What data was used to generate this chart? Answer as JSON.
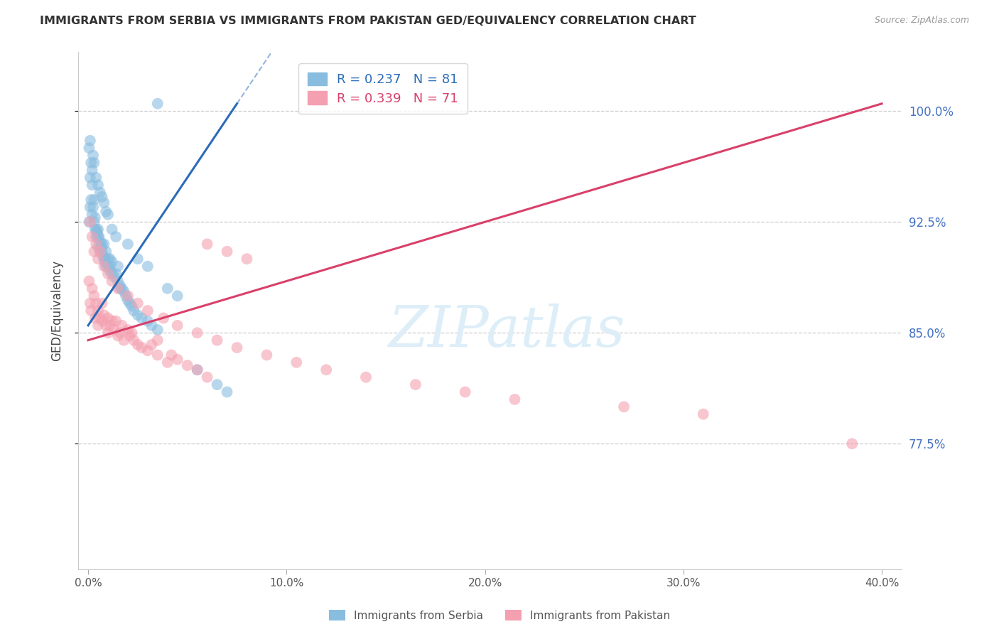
{
  "title": "IMMIGRANTS FROM SERBIA VS IMMIGRANTS FROM PAKISTAN GED/EQUIVALENCY CORRELATION CHART",
  "source": "Source: ZipAtlas.com",
  "ylabel": "GED/Equivalency",
  "xlim": [
    -0.5,
    41.0
  ],
  "ylim": [
    69.0,
    104.0
  ],
  "x_tick_vals": [
    0,
    10,
    20,
    30,
    40
  ],
  "x_tick_labels": [
    "0.0%",
    "10.0%",
    "20.0%",
    "30.0%",
    "40.0%"
  ],
  "y_tick_vals": [
    77.5,
    85.0,
    92.5,
    100.0
  ],
  "y_tick_labels": [
    "77.5%",
    "85.0%",
    "92.5%",
    "100.0%"
  ],
  "serbia_R": 0.237,
  "serbia_N": 81,
  "pakistan_R": 0.339,
  "pakistan_N": 71,
  "serbia_color": "#89bde0",
  "pakistan_color": "#f4a0b0",
  "serbia_line_color": "#2b6cb8",
  "pakistan_line_color": "#d9406a",
  "serbia_line_x": [
    0.0,
    7.5
  ],
  "serbia_line_y": [
    85.5,
    100.5
  ],
  "pakistan_line_x": [
    0.0,
    40.0
  ],
  "pakistan_line_y": [
    84.5,
    100.5
  ],
  "watermark_text": "ZIPatlas",
  "watermark_color": "#ddeef8",
  "serbia_pts_x": [
    0.05,
    0.1,
    0.1,
    0.15,
    0.2,
    0.2,
    0.25,
    0.3,
    0.3,
    0.35,
    0.4,
    0.4,
    0.45,
    0.5,
    0.5,
    0.5,
    0.6,
    0.6,
    0.65,
    0.7,
    0.7,
    0.75,
    0.8,
    0.8,
    0.85,
    0.9,
    0.9,
    1.0,
    1.0,
    1.1,
    1.1,
    1.2,
    1.2,
    1.3,
    1.4,
    1.5,
    1.5,
    1.6,
    1.7,
    1.8,
    1.9,
    2.0,
    2.1,
    2.2,
    2.3,
    2.5,
    2.7,
    3.0,
    3.2,
    3.5,
    0.05,
    0.1,
    0.15,
    0.2,
    0.25,
    0.3,
    0.4,
    0.5,
    0.6,
    0.7,
    0.8,
    0.9,
    1.0,
    1.2,
    1.4,
    2.0,
    2.5,
    3.0,
    4.0,
    4.5,
    5.5,
    6.5,
    7.0,
    3.5,
    1.6,
    0.35,
    0.55,
    0.65,
    0.85,
    1.1,
    0.45
  ],
  "serbia_pts_y": [
    92.5,
    95.5,
    93.5,
    94.0,
    95.0,
    93.0,
    93.5,
    92.5,
    94.0,
    92.0,
    92.0,
    91.5,
    91.8,
    91.5,
    90.8,
    92.0,
    90.5,
    91.2,
    90.8,
    90.5,
    91.0,
    90.2,
    90.0,
    91.0,
    89.8,
    89.5,
    90.5,
    89.5,
    90.0,
    89.2,
    90.0,
    89.0,
    89.8,
    88.8,
    89.0,
    88.5,
    89.5,
    88.2,
    88.0,
    87.8,
    87.5,
    87.2,
    87.0,
    86.8,
    86.5,
    86.2,
    86.0,
    85.8,
    85.5,
    85.2,
    97.5,
    98.0,
    96.5,
    96.0,
    97.0,
    96.5,
    95.5,
    95.0,
    94.5,
    94.2,
    93.8,
    93.2,
    93.0,
    92.0,
    91.5,
    91.0,
    90.0,
    89.5,
    88.0,
    87.5,
    82.5,
    81.5,
    81.0,
    100.5,
    88.0,
    92.8,
    91.5,
    90.8,
    90.0,
    89.5,
    91.8
  ],
  "pakistan_pts_x": [
    0.05,
    0.1,
    0.15,
    0.2,
    0.3,
    0.35,
    0.4,
    0.5,
    0.5,
    0.6,
    0.7,
    0.7,
    0.8,
    0.9,
    1.0,
    1.0,
    1.1,
    1.2,
    1.3,
    1.4,
    1.5,
    1.6,
    1.7,
    1.8,
    2.0,
    2.1,
    2.2,
    2.3,
    2.5,
    2.7,
    3.0,
    3.2,
    3.5,
    3.5,
    4.0,
    4.2,
    4.5,
    5.0,
    5.5,
    6.0,
    0.1,
    0.2,
    0.3,
    0.4,
    0.5,
    0.6,
    0.8,
    1.0,
    1.2,
    1.5,
    2.0,
    2.5,
    3.0,
    3.8,
    4.5,
    5.5,
    6.5,
    7.5,
    9.0,
    10.5,
    12.0,
    14.0,
    16.5,
    19.0,
    21.5,
    27.0,
    31.0,
    38.5,
    6.0,
    7.0,
    8.0
  ],
  "pakistan_pts_y": [
    88.5,
    87.0,
    86.5,
    88.0,
    87.5,
    86.0,
    87.0,
    86.5,
    85.5,
    86.0,
    85.8,
    87.0,
    86.2,
    85.5,
    86.0,
    85.0,
    85.5,
    85.8,
    85.2,
    85.8,
    84.8,
    85.0,
    85.5,
    84.5,
    85.2,
    84.8,
    85.0,
    84.5,
    84.2,
    84.0,
    83.8,
    84.2,
    83.5,
    84.5,
    83.0,
    83.5,
    83.2,
    82.8,
    82.5,
    82.0,
    92.5,
    91.5,
    90.5,
    91.0,
    90.0,
    90.5,
    89.5,
    89.0,
    88.5,
    88.0,
    87.5,
    87.0,
    86.5,
    86.0,
    85.5,
    85.0,
    84.5,
    84.0,
    83.5,
    83.0,
    82.5,
    82.0,
    81.5,
    81.0,
    80.5,
    80.0,
    79.5,
    77.5,
    91.0,
    90.5,
    90.0
  ]
}
